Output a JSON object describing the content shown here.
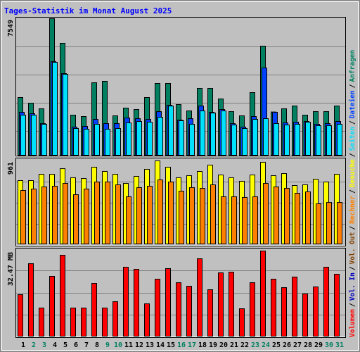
{
  "chart_data": [
    {
      "type": "bar",
      "title": "Tages-Statistik im Monat August 2025",
      "ylim": [
        0,
        7549
      ],
      "yticks": [
        7549
      ],
      "grid_lines": [
        1323,
        2879,
        4436,
        5992
      ],
      "series": [
        {
          "name": "Anfragen",
          "color": "#008060",
          "values": [
            3191,
            2879,
            2568,
            7549,
            6187,
            2218,
            2140,
            4008,
            4086,
            2179,
            2607,
            2529,
            3191,
            3969,
            3969,
            2802,
            2451,
            3696,
            3696,
            3113,
            2412,
            2179,
            3463,
            6031,
            2390,
            2568,
            2724,
            2218,
            2412,
            2412,
            2724
          ]
        },
        {
          "name": "Dateien",
          "color": "#0040ff",
          "values": [
            2374,
            2296,
            1751,
            5180,
            4514,
            1556,
            1595,
            1984,
            1751,
            1751,
            2062,
            2023,
            1984,
            2412,
            2763,
            1946,
            2023,
            2724,
            2374,
            2529,
            1751,
            1556,
            2140,
            4825,
            2374,
            1790,
            1829,
            1868,
            1712,
            1751,
            1868
          ]
        },
        {
          "name": "Seiten",
          "color": "#00e0ff",
          "values": [
            2218,
            2218,
            1712,
            5136,
            4475,
            1479,
            1440,
            1712,
            1440,
            1479,
            1790,
            1868,
            1829,
            2101,
            2720,
            1907,
            1712,
            2451,
            2335,
            2451,
            1673,
            1479,
            1984,
            2023,
            1751,
            1673,
            1712,
            1829,
            1634,
            1634,
            1712
          ]
        }
      ]
    },
    {
      "type": "bar",
      "ylim": [
        0,
        961
      ],
      "yticks": [
        961
      ],
      "grid_lines": [
        228,
        472,
        717
      ],
      "series": [
        {
          "name": "Besuche",
          "color": "#ffff00",
          "values": [
            733,
            733,
            806,
            806,
            871,
            766,
            757,
            888,
            839,
            806,
            700,
            782,
            863,
            961,
            888,
            766,
            790,
            839,
            912,
            798,
            766,
            725,
            798,
            945,
            790,
            814,
            676,
            684,
            749,
            717,
            806
          ]
        },
        {
          "name": "Rechner",
          "color": "#ff8000",
          "values": [
            619,
            635,
            660,
            668,
            700,
            570,
            635,
            717,
            717,
            684,
            546,
            652,
            668,
            741,
            717,
            611,
            652,
            643,
            684,
            546,
            546,
            538,
            546,
            700,
            660,
            643,
            586,
            603,
            464,
            480,
            480
          ]
        }
      ]
    },
    {
      "type": "bar",
      "ylim": [
        0,
        32.47
      ],
      "yticks": [
        {
          "value": 32.47,
          "label": "32.47 MB"
        }
      ],
      "grid_lines": [
        8.05,
        16.37,
        24.95
      ],
      "series": [
        {
          "name": "Volumen",
          "color": "#ff0000",
          "values": [
            15.83,
            27.64,
            10.73,
            22.81,
            30.86,
            10.73,
            10.73,
            20.12,
            10.73,
            13.15,
            26.29,
            25.49,
            12.34,
            21.73,
            25.76,
            20.39,
            19.05,
            29.51,
            17.71,
            24.15,
            24.42,
            10.46,
            20.39,
            32.47,
            21.73,
            18.51,
            22.54,
            16.1,
            18.78,
            26.29,
            23.61
          ]
        }
      ],
      "extra_labels": [
        {
          "text": "Vol. In",
          "color": "#0000c0"
        },
        {
          "text": "Vol. Out",
          "color": "#804000"
        }
      ],
      "categories": [
        "1",
        "2",
        "3",
        "4",
        "5",
        "6",
        "7",
        "8",
        "9",
        "10",
        "11",
        "12",
        "13",
        "14",
        "15",
        "16",
        "17",
        "18",
        "19",
        "20",
        "21",
        "22",
        "23",
        "24",
        "25",
        "26",
        "27",
        "28",
        "29",
        "30",
        "31"
      ],
      "category_colors": [
        "#000000",
        "#008060",
        "#008060",
        "#000000",
        "#000000",
        "#000000",
        "#000000",
        "#000000",
        "#008060",
        "#008060",
        "#000000",
        "#000000",
        "#000000",
        "#000000",
        "#000000",
        "#008060",
        "#008060",
        "#000000",
        "#000000",
        "#000000",
        "#000000",
        "#000000",
        "#008060",
        "#008060",
        "#000000",
        "#000000",
        "#000000",
        "#000000",
        "#000000",
        "#008060",
        "#008060"
      ]
    }
  ],
  "separator": "/"
}
